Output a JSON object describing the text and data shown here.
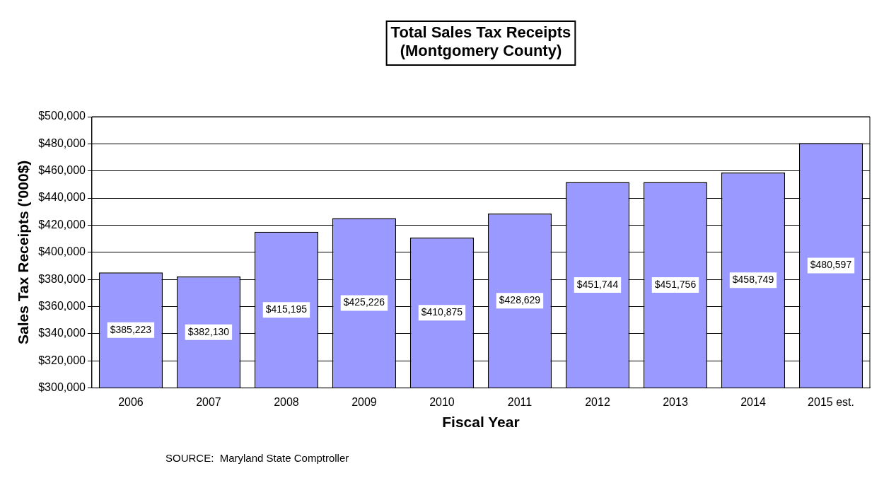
{
  "chart_data": {
    "type": "bar",
    "title": "Total Sales Tax Receipts\n(Montgomery County)",
    "xlabel": "Fiscal Year",
    "ylabel": "Sales Tax Receipts ('000$)",
    "categories": [
      "2006",
      "2007",
      "2008",
      "2009",
      "2010",
      "2011",
      "2012",
      "2013",
      "2014",
      "2015 est."
    ],
    "values": [
      385223,
      382130,
      415195,
      425226,
      410875,
      428629,
      451744,
      451756,
      458749,
      480597
    ],
    "value_labels": [
      "$385,223",
      "$382,130",
      "$415,195",
      "$425,226",
      "$410,875",
      "$428,629",
      "$451,744",
      "$451,756",
      "$458,749",
      "$480,597"
    ],
    "color": "#9999ff",
    "ylim": [
      300000,
      500000
    ],
    "yticks": [
      {
        "value": 300000,
        "label": "$300,000"
      },
      {
        "value": 320000,
        "label": "$320,000"
      },
      {
        "value": 340000,
        "label": "$340,000"
      },
      {
        "value": 360000,
        "label": "$360,000"
      },
      {
        "value": 380000,
        "label": "$380,000"
      },
      {
        "value": 400000,
        "label": "$400,000"
      },
      {
        "value": 420000,
        "label": "$420,000"
      },
      {
        "value": 440000,
        "label": "$440,000"
      },
      {
        "value": 460000,
        "label": "$460,000"
      },
      {
        "value": 480000,
        "label": "$480,000"
      },
      {
        "value": 500000,
        "label": "$500,000"
      }
    ],
    "grid": "y",
    "legend": false,
    "annotations": [
      "SOURCE:  Maryland State Comptroller"
    ]
  }
}
